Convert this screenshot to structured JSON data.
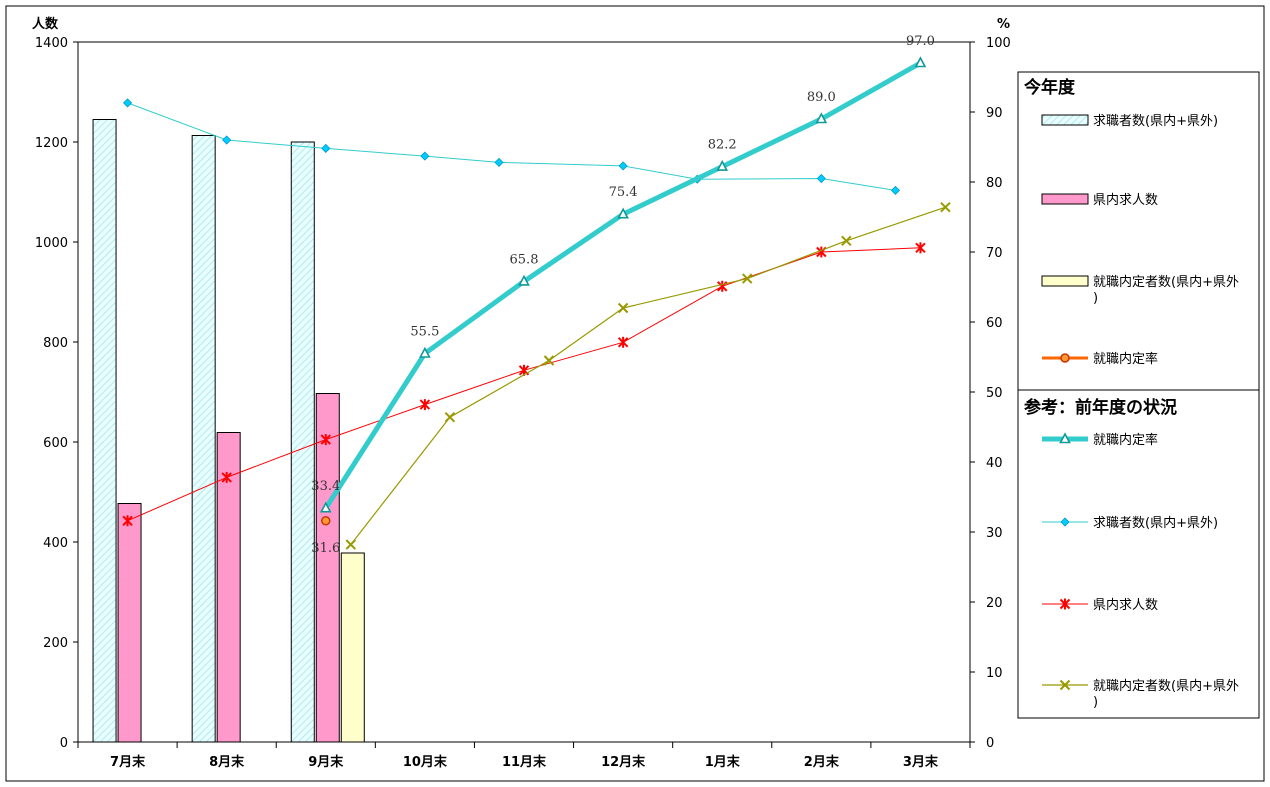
{
  "chart_data": {
    "type": "bar",
    "categories": [
      "7月末",
      "8月末",
      "9月末",
      "10月末",
      "11月末",
      "12月末",
      "1月末",
      "2月末",
      "3月末"
    ],
    "y_left": {
      "label": "人数",
      "range": [
        0,
        1400
      ],
      "ticks": [
        0,
        200,
        400,
        600,
        800,
        1000,
        1200,
        1400
      ]
    },
    "y_right": {
      "label": "%",
      "range": [
        0,
        100
      ],
      "ticks": [
        0,
        10,
        20,
        30,
        40,
        50,
        60,
        70,
        80,
        90,
        100
      ]
    },
    "legend": {
      "current_title": "今年度",
      "previous_title": "参考：前年度の状況"
    },
    "series": [
      {
        "name": "求職者数(県内+県外)",
        "group": "current",
        "kind": "bar",
        "axis": "left",
        "color": "#e0ffff",
        "values": [
          1245,
          1213,
          1200,
          null,
          null,
          null,
          null,
          null,
          null
        ]
      },
      {
        "name": "県内求人数",
        "group": "current",
        "kind": "bar",
        "axis": "left",
        "color": "#ff99cc",
        "values": [
          477,
          619,
          697,
          null,
          null,
          null,
          null,
          null,
          null
        ]
      },
      {
        "name": "就職内定者数(県内+県外)",
        "group": "current",
        "kind": "bar",
        "axis": "left",
        "color": "#ffffcc",
        "values": [
          null,
          null,
          378,
          null,
          null,
          null,
          null,
          null,
          null
        ]
      },
      {
        "name": "就職内定率",
        "group": "current",
        "kind": "line",
        "axis": "right",
        "color": "#ff6600",
        "values": [
          null,
          null,
          31.6,
          null,
          null,
          null,
          null,
          null,
          null
        ]
      },
      {
        "name": "就職内定率",
        "group": "previous",
        "kind": "line",
        "axis": "right",
        "color": "#33cccc",
        "values": [
          null,
          null,
          33.4,
          55.5,
          65.8,
          75.4,
          82.2,
          89.0,
          97.0
        ]
      },
      {
        "name": "求職者数(県内+県外)",
        "group": "previous",
        "kind": "line",
        "axis": "right",
        "color": "#33cccc",
        "values": [
          91.3,
          86.0,
          84.8,
          83.7,
          82.8,
          82.3,
          80.4,
          80.5,
          78.8
        ]
      },
      {
        "name": "県内求人数",
        "group": "previous",
        "kind": "line",
        "axis": "right",
        "color": "#ff0000",
        "values": [
          31.6,
          37.8,
          43.2,
          48.2,
          53.1,
          57.1,
          65.1,
          70.0,
          70.6
        ]
      },
      {
        "name": "就職内定者数(県内+県外)",
        "group": "previous",
        "kind": "line",
        "axis": "right",
        "color": "#999900",
        "values": [
          null,
          null,
          28.2,
          46.4,
          54.5,
          62.0,
          66.2,
          71.6,
          76.4
        ]
      }
    ],
    "data_labels": [
      "31.6",
      "33.4",
      "55.5",
      "65.8",
      "75.4",
      "82.2",
      "89.0",
      "97.0"
    ]
  }
}
